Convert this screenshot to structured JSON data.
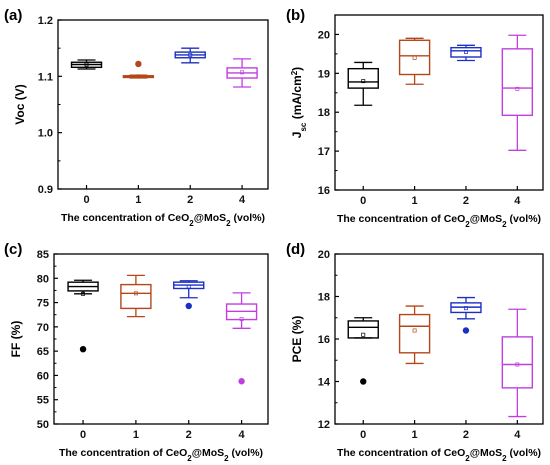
{
  "chart_data": [
    {
      "type": "box",
      "panel_label": "(a)",
      "ylabel": "Voc (V)",
      "xlabel": "The concentration of CeO2@MoS2 (vol%)",
      "categories": [
        "0",
        "1",
        "2",
        "4"
      ],
      "ylim": [
        0.9,
        1.2
      ],
      "yticks": [
        "0.9",
        "1.0",
        "1.1",
        "1.2"
      ],
      "yticks_num": [
        0.9,
        1.0,
        1.1,
        1.2
      ],
      "boxes": [
        {
          "whisker_low": 1.113,
          "q1": 1.116,
          "median": 1.121,
          "q3": 1.125,
          "whisker_high": 1.129,
          "mean": 1.121,
          "outliers": []
        },
        {
          "whisker_low": 1.097,
          "q1": 1.098,
          "median": 1.1,
          "q3": 1.101,
          "whisker_high": 1.102,
          "mean": 1.1,
          "outliers": [
            1.122
          ]
        },
        {
          "whisker_low": 1.124,
          "q1": 1.133,
          "median": 1.138,
          "q3": 1.143,
          "whisker_high": 1.15,
          "mean": 1.138,
          "outliers": []
        },
        {
          "whisker_low": 1.081,
          "q1": 1.097,
          "median": 1.106,
          "q3": 1.115,
          "whisker_high": 1.131,
          "mean": 1.107,
          "outliers": []
        }
      ]
    },
    {
      "type": "box",
      "panel_label": "(b)",
      "ylabel": "Jsc (mA/cm2)",
      "xlabel": "The concentration of CeO2@MoS2 (vol%)",
      "categories": [
        "0",
        "1",
        "2",
        "4"
      ],
      "ylim": [
        16,
        20.5
      ],
      "yticks": [
        "16",
        "17",
        "18",
        "19",
        "20"
      ],
      "yticks_num": [
        16,
        17,
        18,
        19,
        20
      ],
      "boxes": [
        {
          "whisker_low": 18.18,
          "q1": 18.62,
          "median": 18.78,
          "q3": 19.12,
          "whisker_high": 19.28,
          "mean": 18.8,
          "outliers": []
        },
        {
          "whisker_low": 18.72,
          "q1": 18.97,
          "median": 19.45,
          "q3": 19.85,
          "whisker_high": 19.9,
          "mean": 19.4,
          "outliers": []
        },
        {
          "whisker_low": 19.33,
          "q1": 19.42,
          "median": 19.58,
          "q3": 19.66,
          "whisker_high": 19.72,
          "mean": 19.55,
          "outliers": []
        },
        {
          "whisker_low": 17.02,
          "q1": 17.92,
          "median": 18.62,
          "q3": 19.63,
          "whisker_high": 19.98,
          "mean": 18.6,
          "outliers": []
        }
      ]
    },
    {
      "type": "box",
      "panel_label": "(c)",
      "ylabel": "FF (%)",
      "xlabel": "The concentration of CeO2@MoS2 (vol%)",
      "categories": [
        "0",
        "1",
        "2",
        "4"
      ],
      "ylim": [
        50,
        85
      ],
      "yticks": [
        "50",
        "55",
        "60",
        "65",
        "70",
        "75",
        "80",
        "85"
      ],
      "yticks_num": [
        50,
        55,
        60,
        65,
        70,
        75,
        80,
        85
      ],
      "boxes": [
        {
          "whisker_low": 76.8,
          "q1": 77.4,
          "median": 78.3,
          "q3": 79.2,
          "whisker_high": 79.6,
          "mean": 76.8,
          "outliers": [
            65.4
          ]
        },
        {
          "whisker_low": 72.1,
          "q1": 73.8,
          "median": 76.9,
          "q3": 78.7,
          "whisker_high": 80.6,
          "mean": 76.9,
          "outliers": []
        },
        {
          "whisker_low": 76.0,
          "q1": 77.9,
          "median": 78.6,
          "q3": 79.2,
          "whisker_high": 79.5,
          "mean": 78.3,
          "outliers": [
            74.3
          ]
        },
        {
          "whisker_low": 69.7,
          "q1": 71.5,
          "median": 73.2,
          "q3": 74.7,
          "whisker_high": 77.0,
          "mean": 71.6,
          "outliers": [
            58.8
          ]
        }
      ]
    },
    {
      "type": "box",
      "panel_label": "(d)",
      "ylabel": "PCE (%)",
      "xlabel": "The concentration of CeO2@MoS2 (vol%)",
      "categories": [
        "0",
        "1",
        "2",
        "4"
      ],
      "ylim": [
        12,
        20
      ],
      "yticks": [
        "12",
        "14",
        "16",
        "18",
        "20"
      ],
      "yticks_num": [
        12,
        14,
        16,
        18,
        20
      ],
      "boxes": [
        {
          "whisker_low": 16.05,
          "q1": 16.05,
          "median": 16.55,
          "q3": 16.85,
          "whisker_high": 17.0,
          "mean": 16.2,
          "outliers": [
            14.0
          ]
        },
        {
          "whisker_low": 14.85,
          "q1": 15.35,
          "median": 16.6,
          "q3": 17.15,
          "whisker_high": 17.55,
          "mean": 16.4,
          "outliers": []
        },
        {
          "whisker_low": 16.95,
          "q1": 17.25,
          "median": 17.5,
          "q3": 17.7,
          "whisker_high": 17.95,
          "mean": 17.45,
          "outliers": [
            16.4
          ]
        },
        {
          "whisker_low": 12.35,
          "q1": 13.7,
          "median": 14.8,
          "q3": 16.1,
          "whisker_high": 17.4,
          "mean": 14.8,
          "outliers": []
        }
      ]
    }
  ],
  "series_colors": [
    "#000000",
    "#b5461a",
    "#1b2fc2",
    "#c13fe0"
  ]
}
